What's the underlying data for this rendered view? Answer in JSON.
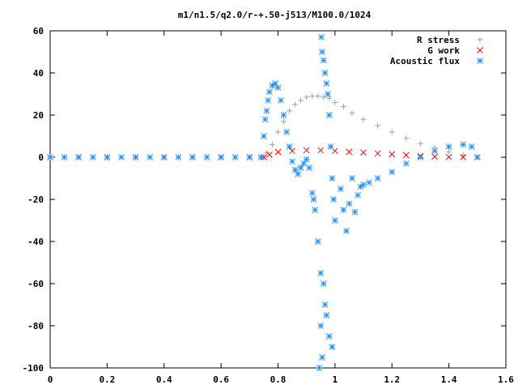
{
  "chart_data": {
    "type": "scatter",
    "title": "m1/n1.5/q2.0/r-+.50-j513/M100.0/1024",
    "xlabel": "",
    "ylabel": "",
    "xlim": [
      0,
      1.6
    ],
    "ylim": [
      -100,
      60
    ],
    "x_ticks": [
      0,
      0.2,
      0.4,
      0.6,
      0.8,
      1,
      1.2,
      1.4,
      1.6
    ],
    "x_tick_labels": [
      "0",
      "0.2",
      "0.4",
      "0.6",
      "0.8",
      "1",
      "1.2",
      "1.4",
      "1.6"
    ],
    "y_ticks": [
      -100,
      -80,
      -60,
      -40,
      -20,
      0,
      20,
      40,
      60
    ],
    "y_tick_labels": [
      "-100",
      "-80",
      "-60",
      "-40",
      "-20",
      "0",
      "20",
      "40",
      "60"
    ],
    "grid": false,
    "legend_position": "top-right",
    "series": [
      {
        "name": "R stress",
        "marker": "+",
        "color": "#a0a0a0",
        "points": [
          [
            0,
            0
          ],
          [
            0.1,
            0
          ],
          [
            0.2,
            0
          ],
          [
            0.3,
            0
          ],
          [
            0.4,
            0
          ],
          [
            0.5,
            0
          ],
          [
            0.6,
            0
          ],
          [
            0.7,
            0
          ],
          [
            0.75,
            0
          ],
          [
            0.76,
            2
          ],
          [
            0.78,
            6
          ],
          [
            0.8,
            12
          ],
          [
            0.82,
            17
          ],
          [
            0.84,
            22
          ],
          [
            0.86,
            25
          ],
          [
            0.88,
            27
          ],
          [
            0.9,
            28.5
          ],
          [
            0.92,
            29
          ],
          [
            0.94,
            29
          ],
          [
            0.96,
            28.5
          ],
          [
            0.98,
            28
          ],
          [
            1.0,
            26
          ],
          [
            1.03,
            24
          ],
          [
            1.06,
            21
          ],
          [
            1.1,
            18
          ],
          [
            1.15,
            15
          ],
          [
            1.2,
            12
          ],
          [
            1.25,
            9
          ],
          [
            1.3,
            6.5
          ],
          [
            1.35,
            4.5
          ],
          [
            1.4,
            2.5
          ],
          [
            1.45,
            1
          ],
          [
            1.5,
            0
          ]
        ]
      },
      {
        "name": "G work",
        "marker": "x",
        "color": "#ff0000",
        "points": [
          [
            0,
            0
          ],
          [
            0.1,
            0
          ],
          [
            0.2,
            0
          ],
          [
            0.3,
            0
          ],
          [
            0.4,
            0
          ],
          [
            0.5,
            0
          ],
          [
            0.6,
            0
          ],
          [
            0.7,
            0
          ],
          [
            0.75,
            0
          ],
          [
            0.77,
            1.2
          ],
          [
            0.8,
            2.5
          ],
          [
            0.85,
            3
          ],
          [
            0.9,
            3.3
          ],
          [
            0.95,
            3.3
          ],
          [
            1.0,
            3
          ],
          [
            1.05,
            2.6
          ],
          [
            1.1,
            2.2
          ],
          [
            1.15,
            1.8
          ],
          [
            1.2,
            1.4
          ],
          [
            1.25,
            1
          ],
          [
            1.3,
            0.6
          ],
          [
            1.35,
            0.3
          ],
          [
            1.4,
            0.1
          ],
          [
            1.45,
            0
          ],
          [
            1.5,
            0
          ]
        ]
      },
      {
        "name": "Acoustic flux",
        "marker": "*",
        "color": "#1e90ff",
        "points": [
          [
            0,
            0
          ],
          [
            0.05,
            0
          ],
          [
            0.1,
            0
          ],
          [
            0.15,
            0
          ],
          [
            0.2,
            0
          ],
          [
            0.25,
            0
          ],
          [
            0.3,
            0
          ],
          [
            0.35,
            0
          ],
          [
            0.4,
            0
          ],
          [
            0.45,
            0
          ],
          [
            0.5,
            0
          ],
          [
            0.55,
            0
          ],
          [
            0.6,
            0
          ],
          [
            0.65,
            0
          ],
          [
            0.7,
            0
          ],
          [
            0.74,
            0
          ],
          [
            0.75,
            10
          ],
          [
            0.755,
            18
          ],
          [
            0.76,
            22
          ],
          [
            0.765,
            27
          ],
          [
            0.77,
            31
          ],
          [
            0.78,
            34
          ],
          [
            0.79,
            35
          ],
          [
            0.8,
            33
          ],
          [
            0.81,
            27
          ],
          [
            0.82,
            20
          ],
          [
            0.83,
            12
          ],
          [
            0.84,
            5
          ],
          [
            0.85,
            -2
          ],
          [
            0.86,
            -6
          ],
          [
            0.87,
            -8
          ],
          [
            0.88,
            -5
          ],
          [
            0.89,
            -3
          ],
          [
            0.9,
            -1
          ],
          [
            0.91,
            -5
          ],
          [
            0.92,
            -17
          ],
          [
            0.925,
            -20
          ],
          [
            0.93,
            -25
          ],
          [
            0.94,
            -40
          ],
          [
            0.95,
            -55
          ],
          [
            0.952,
            57
          ],
          [
            0.955,
            50
          ],
          [
            0.96,
            46
          ],
          [
            0.965,
            40
          ],
          [
            0.97,
            35
          ],
          [
            0.975,
            30
          ],
          [
            0.98,
            20
          ],
          [
            0.985,
            5
          ],
          [
            0.99,
            -10
          ],
          [
            0.995,
            -20
          ],
          [
            1.0,
            -30
          ],
          [
            0.95,
            -80
          ],
          [
            0.96,
            -60
          ],
          [
            0.965,
            -70
          ],
          [
            0.97,
            -75
          ],
          [
            0.98,
            -85
          ],
          [
            0.99,
            -90
          ],
          [
            0.945,
            -100
          ],
          [
            0.955,
            -95
          ],
          [
            1.02,
            -15
          ],
          [
            1.03,
            -25
          ],
          [
            1.04,
            -35
          ],
          [
            1.05,
            -22
          ],
          [
            1.06,
            -10
          ],
          [
            1.07,
            -26
          ],
          [
            1.08,
            -18
          ],
          [
            1.09,
            -14
          ],
          [
            1.1,
            -13
          ],
          [
            1.12,
            -12
          ],
          [
            1.15,
            -10
          ],
          [
            1.2,
            -7
          ],
          [
            1.25,
            -3
          ],
          [
            1.3,
            0
          ],
          [
            1.35,
            3
          ],
          [
            1.4,
            5
          ],
          [
            1.45,
            6
          ],
          [
            1.48,
            5
          ],
          [
            1.5,
            0
          ]
        ]
      }
    ]
  }
}
